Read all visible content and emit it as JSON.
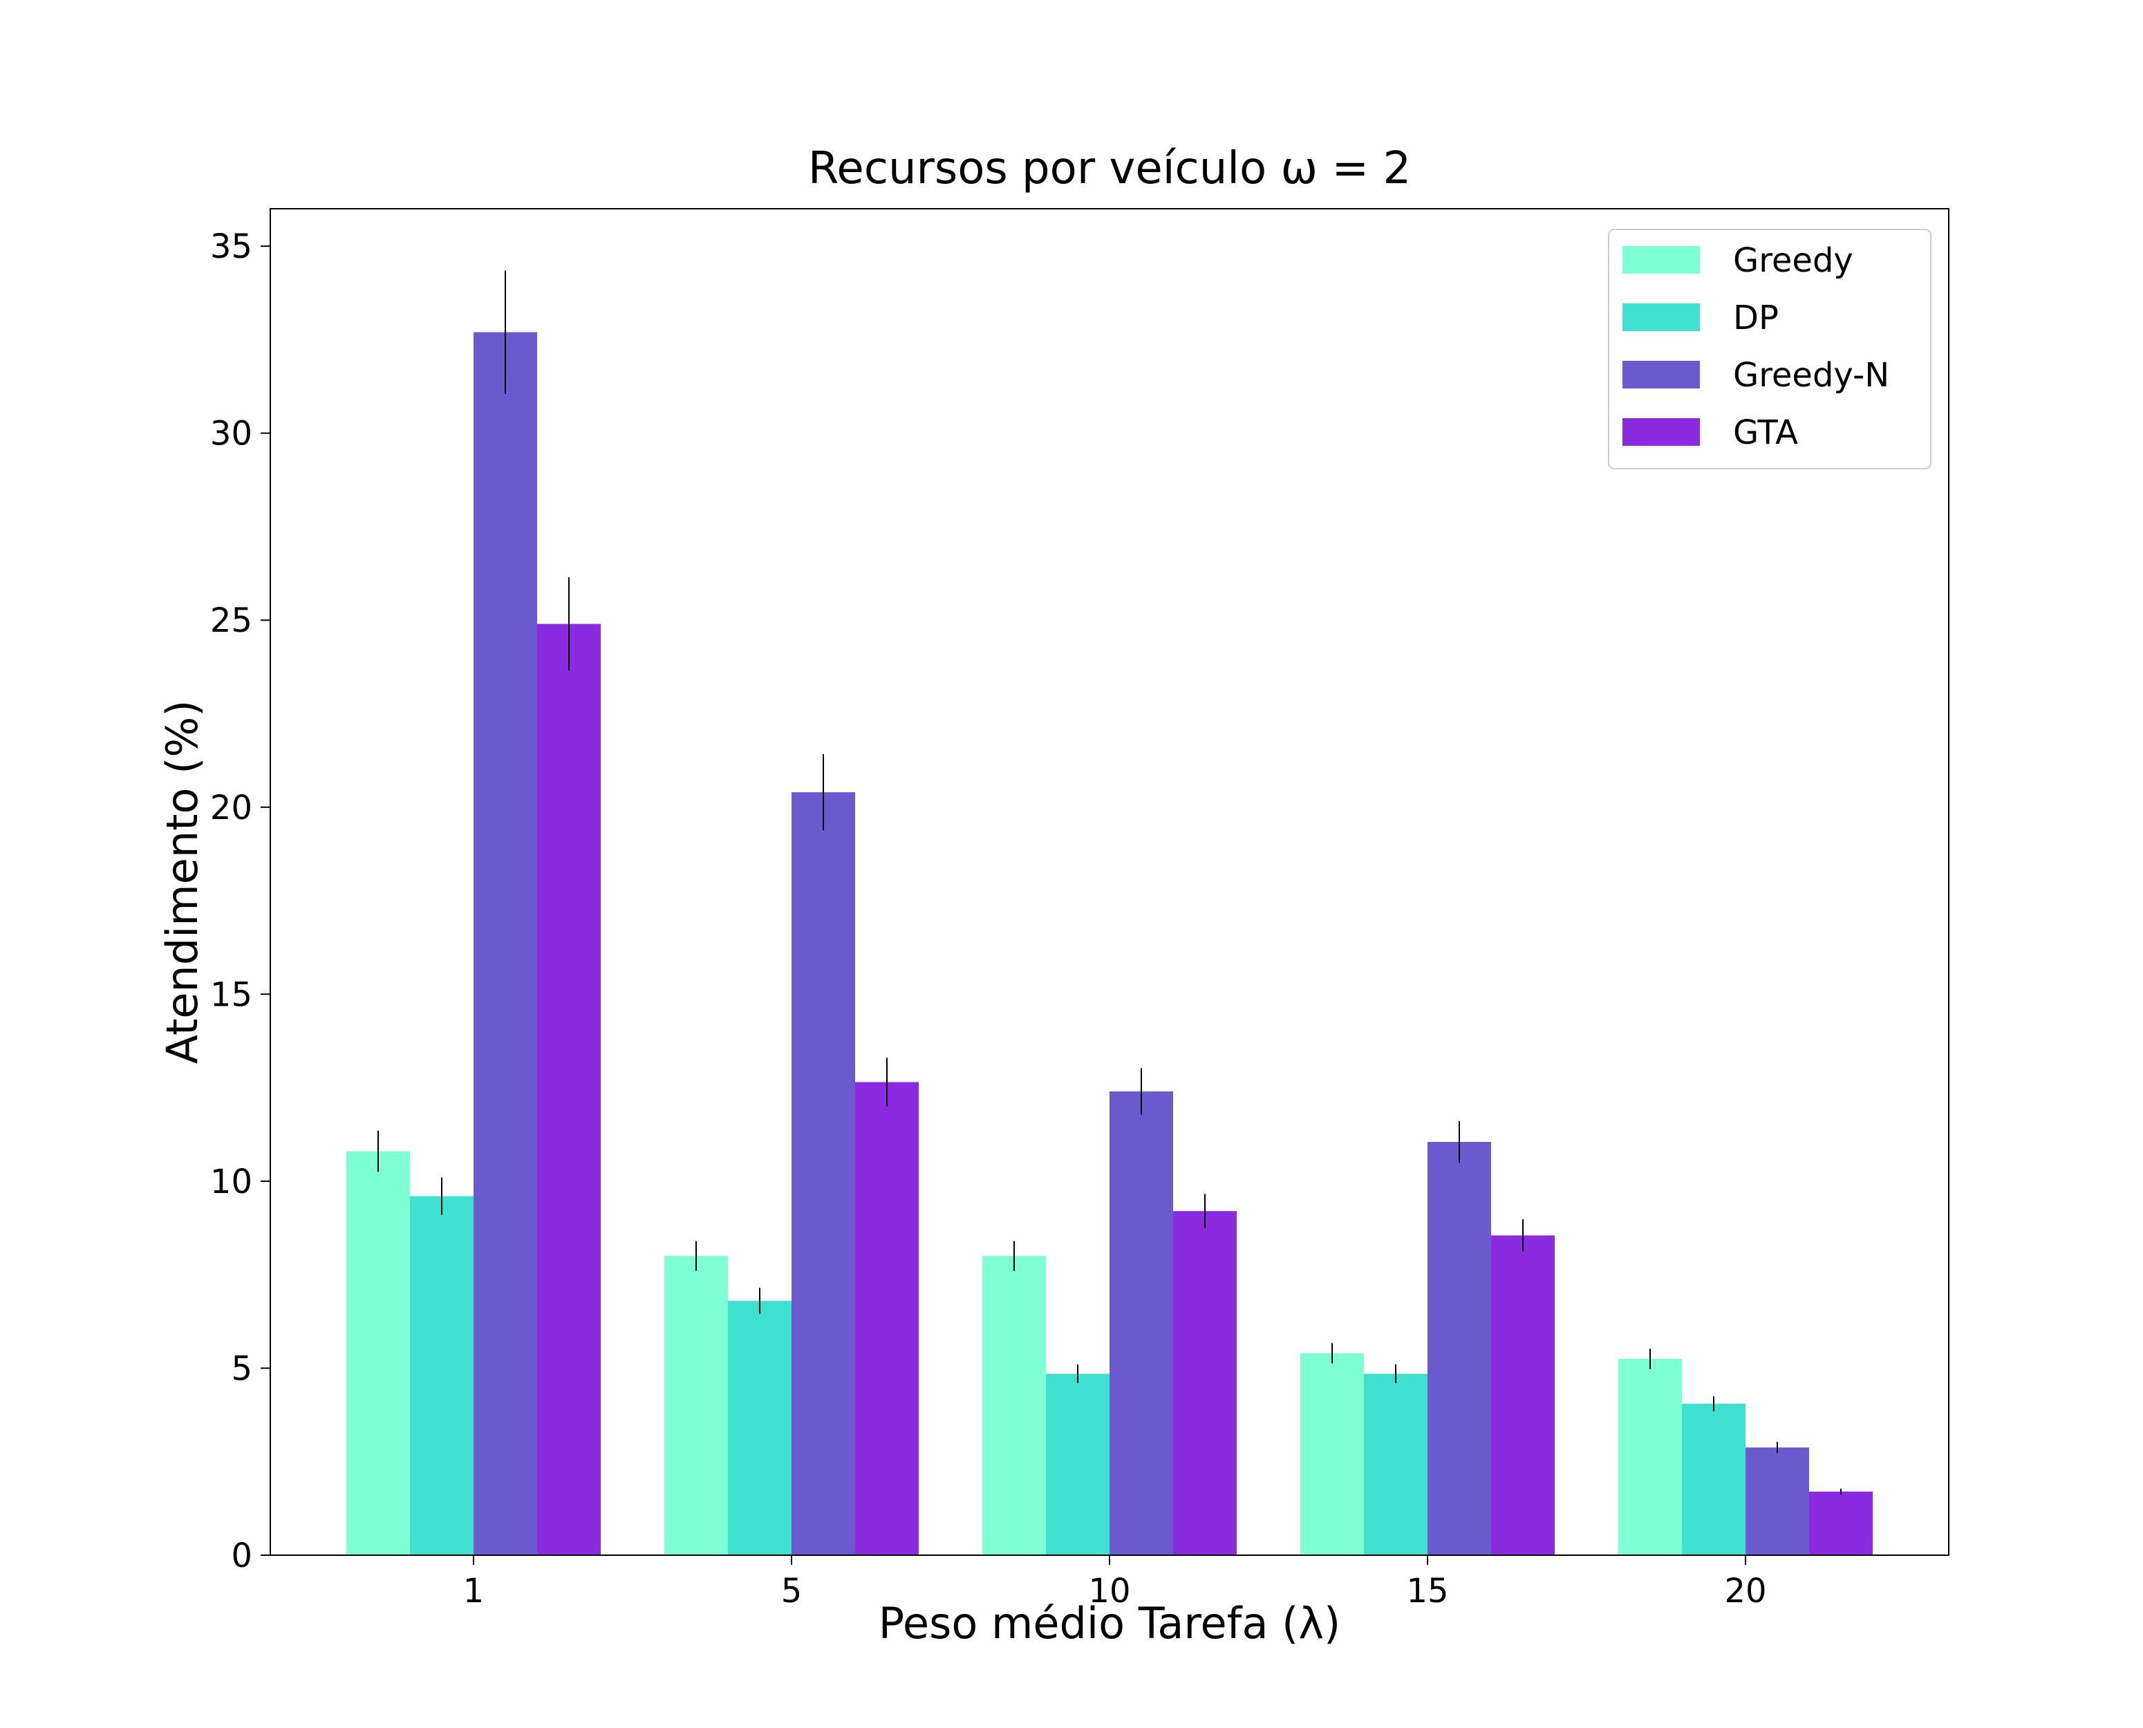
{
  "chart_data": {
    "type": "bar",
    "title": "Recursos por veículo ω = 2",
    "xlabel": "Peso médio Tarefa (λ)",
    "ylabel": "Atendimento (%)",
    "categories": [
      "1",
      "5",
      "10",
      "15",
      "20"
    ],
    "ylim": [
      0,
      36
    ],
    "yticks": [
      "0",
      "5",
      "10",
      "15",
      "20",
      "25",
      "30",
      "35"
    ],
    "grid": false,
    "legend_position": "top-right",
    "series": [
      {
        "name": "Greedy",
        "color": "#7fffd4",
        "values": [
          10.8,
          8.0,
          8.0,
          5.4,
          5.25
        ],
        "errors": [
          0.55,
          0.4,
          0.4,
          0.27,
          0.27
        ]
      },
      {
        "name": "DP",
        "color": "#40e0d0",
        "values": [
          9.6,
          6.8,
          4.85,
          4.85,
          4.05
        ],
        "errors": [
          0.5,
          0.35,
          0.25,
          0.25,
          0.2
        ]
      },
      {
        "name": "Greedy-N",
        "color": "#6a5acd",
        "values": [
          32.7,
          20.4,
          12.4,
          11.05,
          2.88
        ],
        "errors": [
          1.65,
          1.02,
          0.62,
          0.56,
          0.15
        ]
      },
      {
        "name": "GTA",
        "color": "#8a2be2",
        "values": [
          24.9,
          12.65,
          9.2,
          8.55,
          1.7
        ],
        "errors": [
          1.25,
          0.65,
          0.46,
          0.43,
          0.08
        ]
      }
    ]
  }
}
